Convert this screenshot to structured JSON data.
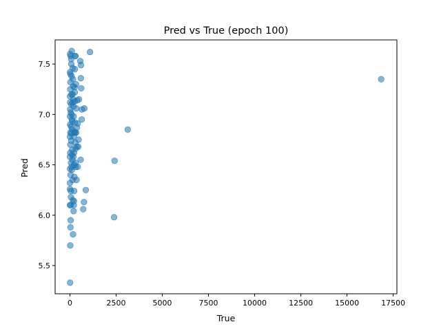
{
  "chart_data": {
    "type": "scatter",
    "title": "Pred vs True (epoch 100)",
    "xlabel": "True",
    "ylabel": "Pred",
    "xlim": [
      -800,
      17700
    ],
    "ylim": [
      5.22,
      7.74
    ],
    "xticks": [
      0,
      2500,
      5000,
      7500,
      10000,
      12500,
      15000,
      17500
    ],
    "xtick_labels": [
      "0",
      "2500",
      "5000",
      "7500",
      "10000",
      "12500",
      "15000",
      "17500"
    ],
    "yticks": [
      5.5,
      6.0,
      6.5,
      7.0,
      7.5
    ],
    "ytick_labels": [
      "5.5",
      "6.0",
      "6.5",
      "7.0",
      "7.5"
    ],
    "grid": false,
    "marker_color": "#1f77b4",
    "marker_alpha": 0.55,
    "points": [
      [
        16850,
        7.35
      ],
      [
        1090,
        7.62
      ],
      [
        3130,
        6.85
      ],
      [
        2420,
        6.54
      ],
      [
        2390,
        5.98
      ],
      [
        860,
        6.25
      ],
      [
        760,
        6.13
      ],
      [
        720,
        6.06
      ],
      [
        780,
        7.06
      ],
      [
        650,
        7.05
      ],
      [
        640,
        6.95
      ],
      [
        580,
        6.55
      ],
      [
        600,
        7.49
      ],
      [
        560,
        7.53
      ],
      [
        590,
        7.36
      ],
      [
        610,
        7.26
      ],
      [
        490,
        7.15
      ],
      [
        470,
        6.75
      ],
      [
        450,
        6.68
      ],
      [
        420,
        6.48
      ],
      [
        380,
        6.87
      ],
      [
        360,
        6.35
      ],
      [
        330,
        7.3
      ],
      [
        300,
        7.58
      ],
      [
        280,
        7.58
      ],
      [
        260,
        7.13
      ],
      [
        240,
        6.83
      ],
      [
        230,
        6.24
      ],
      [
        220,
        6.14
      ],
      [
        210,
        6.1
      ],
      [
        200,
        6.04
      ],
      [
        170,
        5.81
      ],
      [
        150,
        7.46
      ],
      [
        140,
        7.2
      ],
      [
        120,
        6.6
      ],
      [
        110,
        6.45
      ],
      [
        100,
        7.63
      ],
      [
        90,
        7.38
      ],
      [
        80,
        7.1
      ],
      [
        70,
        6.81
      ],
      [
        60,
        6.52
      ],
      [
        50,
        6.24
      ],
      [
        40,
        5.95
      ],
      [
        30,
        5.88
      ],
      [
        20,
        5.7
      ],
      [
        10,
        5.33
      ],
      [
        40,
        7.58
      ],
      [
        30,
        7.4
      ],
      [
        20,
        7.25
      ],
      [
        15,
        7.05
      ],
      [
        10,
        6.9
      ],
      [
        25,
        6.7
      ],
      [
        35,
        6.4
      ],
      [
        45,
        6.1
      ],
      [
        55,
        6.18
      ],
      [
        65,
        7.55
      ],
      [
        75,
        7.5
      ],
      [
        85,
        7.2
      ],
      [
        95,
        7.0
      ],
      [
        105,
        6.95
      ],
      [
        115,
        6.85
      ],
      [
        125,
        6.65
      ],
      [
        135,
        6.55
      ],
      [
        145,
        6.35
      ],
      [
        155,
        6.15
      ],
      [
        165,
        7.35
      ],
      [
        175,
        7.28
      ],
      [
        185,
        7.15
      ],
      [
        195,
        7.08
      ],
      [
        205,
        6.98
      ],
      [
        215,
        6.78
      ],
      [
        225,
        6.62
      ],
      [
        235,
        6.5
      ],
      [
        245,
        6.38
      ],
      [
        255,
        7.27
      ],
      [
        265,
        7.22
      ],
      [
        275,
        6.92
      ],
      [
        285,
        6.82
      ],
      [
        295,
        6.72
      ],
      [
        305,
        6.66
      ],
      [
        315,
        6.48
      ],
      [
        5,
        7.42
      ],
      [
        5,
        7.18
      ],
      [
        5,
        6.98
      ],
      [
        5,
        6.78
      ],
      [
        5,
        6.58
      ],
      [
        5,
        6.46
      ],
      [
        5,
        6.32
      ],
      [
        5,
        6.26
      ],
      [
        5,
        6.1
      ],
      [
        8,
        7.6
      ],
      [
        12,
        7.12
      ],
      [
        18,
        6.62
      ],
      [
        22,
        6.82
      ],
      [
        28,
        7.32
      ],
      [
        50,
        7.02
      ],
      [
        60,
        6.88
      ],
      [
        70,
        6.74
      ],
      [
        90,
        6.48
      ],
      [
        130,
        6.93
      ],
      [
        160,
        7.12
      ],
      [
        190,
        6.58
      ],
      [
        250,
        6.82
      ],
      [
        340,
        6.82
      ],
      [
        400,
        7.14
      ],
      [
        420,
        6.91
      ],
      [
        370,
        6.68
      ],
      [
        350,
        7.06
      ],
      [
        310,
        6.52
      ],
      [
        270,
        7.45
      ]
    ]
  }
}
